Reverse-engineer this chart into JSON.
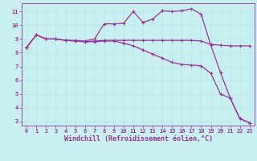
{
  "xlabel": "Windchill (Refroidissement éolien,°C)",
  "bg_color": "#c8f0f0",
  "line_color": "#993399",
  "grid_color": "#b8e8e8",
  "xlim": [
    -0.5,
    23.5
  ],
  "ylim": [
    2.7,
    11.6
  ],
  "yticks": [
    3,
    4,
    5,
    6,
    7,
    8,
    9,
    10,
    11
  ],
  "xticks": [
    0,
    1,
    2,
    3,
    4,
    5,
    6,
    7,
    8,
    9,
    10,
    11,
    12,
    13,
    14,
    15,
    16,
    17,
    18,
    19,
    20,
    21,
    22,
    23
  ],
  "line1_x": [
    0,
    1,
    2,
    3,
    4,
    5,
    6,
    7,
    8,
    9,
    10,
    11,
    12,
    13,
    14,
    15,
    16,
    17,
    18,
    19,
    20,
    21,
    22,
    23
  ],
  "line1_y": [
    8.4,
    9.3,
    9.0,
    9.0,
    8.9,
    8.9,
    8.85,
    9.0,
    10.1,
    10.1,
    10.15,
    11.0,
    10.2,
    10.45,
    11.05,
    11.0,
    11.05,
    11.2,
    10.8,
    8.55,
    6.55,
    4.7,
    3.2,
    2.9
  ],
  "line2_x": [
    0,
    1,
    2,
    3,
    4,
    5,
    6,
    7,
    8,
    9,
    10,
    11,
    12,
    13,
    14,
    15,
    16,
    17,
    18,
    19,
    20,
    21,
    22,
    23
  ],
  "line2_y": [
    8.4,
    9.3,
    9.0,
    9.0,
    8.9,
    8.85,
    8.8,
    8.85,
    8.9,
    8.9,
    8.9,
    8.9,
    8.9,
    8.9,
    8.9,
    8.9,
    8.9,
    8.9,
    8.85,
    8.6,
    8.55,
    8.5,
    8.5,
    8.5
  ],
  "line3_x": [
    0,
    1,
    2,
    3,
    4,
    5,
    6,
    7,
    8,
    9,
    10,
    11,
    12,
    13,
    14,
    15,
    16,
    17,
    18,
    19,
    20,
    21,
    22,
    23
  ],
  "line3_y": [
    8.4,
    9.3,
    9.0,
    9.0,
    8.9,
    8.85,
    8.8,
    8.8,
    8.85,
    8.85,
    8.7,
    8.5,
    8.2,
    7.9,
    7.6,
    7.3,
    7.15,
    7.1,
    7.05,
    6.5,
    5.0,
    4.7,
    3.2,
    2.9
  ],
  "marker": "+",
  "markersize": 3.0,
  "linewidth": 0.9,
  "tick_fontsize": 5.0,
  "xlabel_fontsize": 6.0
}
